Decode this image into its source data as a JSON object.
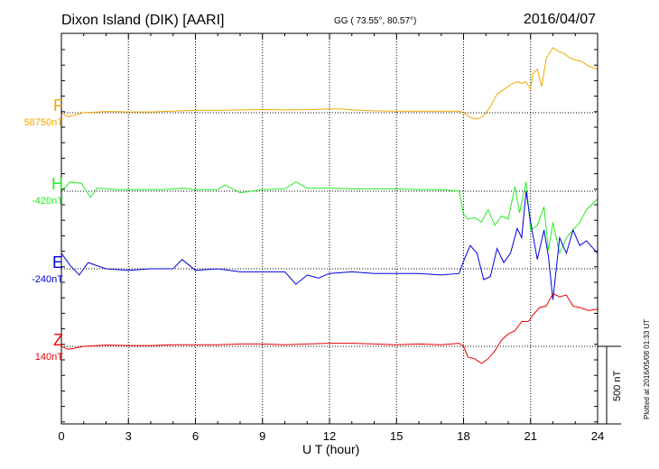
{
  "header": {
    "station": "Dixon Island (DIK)  [AARI]",
    "coords": "GG ( 73.55°,  80.57°)",
    "date": "2016/04/07"
  },
  "footer": {
    "plotted": "Plotted at 2016/05/08 01:33 UT",
    "scale_bar": "500 nT"
  },
  "colors": {
    "F": "#f0a800",
    "H": "#22ee22",
    "E": "#0000dd",
    "Z": "#ee0000"
  },
  "chart_data": {
    "type": "line",
    "title": "Dixon Island (DIK)  [AARI]",
    "xlabel": "U T (hour)",
    "ylabel": "",
    "xlim": [
      0,
      24
    ],
    "x_ticks": [
      "0",
      "3",
      "6",
      "9",
      "12",
      "15",
      "18",
      "21",
      "24"
    ],
    "scale_bar_nT": 500,
    "grid": true,
    "series": [
      {
        "name": "F",
        "baseline_label": "58750nT",
        "x": [
          0,
          0.3,
          1,
          2,
          3,
          4,
          5,
          6,
          7,
          8,
          9,
          10,
          11,
          12,
          12.5,
          13,
          14,
          15,
          16,
          17,
          17.8,
          18.0,
          18.3,
          18.6,
          18.9,
          19.2,
          19.5,
          19.8,
          20.1,
          20.4,
          20.6,
          20.8,
          21.0,
          21.1,
          21.3,
          21.5,
          21.7,
          22.0,
          22.2,
          22.5,
          22.8,
          23.0,
          23.3,
          23.6,
          24
        ],
        "y": [
          0,
          -25,
          0,
          8,
          5,
          5,
          10,
          15,
          15,
          18,
          20,
          18,
          20,
          25,
          25,
          18,
          12,
          10,
          10,
          10,
          10,
          0,
          -30,
          -40,
          -20,
          40,
          120,
          150,
          180,
          200,
          190,
          200,
          150,
          250,
          280,
          170,
          350,
          420,
          400,
          380,
          350,
          340,
          330,
          300,
          280
        ]
      },
      {
        "name": "H",
        "baseline_label": "-420nT",
        "x": [
          0,
          0.4,
          0.9,
          1.3,
          1.6,
          2.5,
          3.5,
          4.5,
          5.5,
          6,
          7,
          7.3,
          8,
          9,
          10,
          10.5,
          11,
          12,
          13,
          14,
          15,
          16,
          17,
          17.8,
          18.0,
          18.2,
          18.5,
          18.8,
          19.1,
          19.4,
          19.7,
          20.0,
          20.3,
          20.5,
          20.8,
          21.0,
          21.3,
          21.6,
          21.8,
          22.0,
          22.3,
          22.6,
          22.9,
          23.2,
          23.5,
          24
        ],
        "y": [
          0,
          60,
          50,
          -40,
          20,
          10,
          10,
          10,
          20,
          10,
          10,
          40,
          -10,
          10,
          15,
          60,
          20,
          20,
          15,
          15,
          15,
          10,
          10,
          0,
          -150,
          -180,
          -170,
          -200,
          -120,
          -220,
          -160,
          -180,
          30,
          -140,
          60,
          -250,
          -220,
          -100,
          -380,
          -200,
          -400,
          -300,
          -250,
          -200,
          -120,
          -50
        ]
      },
      {
        "name": "E",
        "baseline_label": "-240nT",
        "x": [
          0,
          0.4,
          0.8,
          1.2,
          1.6,
          2,
          3,
          4,
          5,
          5.4,
          6,
          7,
          8,
          9,
          10,
          10.5,
          11,
          11.5,
          12,
          13,
          14,
          15,
          16,
          17,
          17.8,
          18.0,
          18.3,
          18.6,
          18.9,
          19.2,
          19.5,
          19.8,
          20.1,
          20.4,
          20.6,
          20.8,
          21.0,
          21.3,
          21.6,
          21.8,
          22.0,
          22.3,
          22.6,
          22.9,
          23.2,
          23.5,
          24
        ],
        "y": [
          100,
          20,
          -40,
          40,
          20,
          0,
          -10,
          0,
          0,
          60,
          -10,
          0,
          -20,
          -20,
          -20,
          -100,
          -40,
          -60,
          -30,
          -20,
          -30,
          -30,
          -30,
          -40,
          -30,
          50,
          150,
          100,
          -70,
          -50,
          130,
          40,
          100,
          260,
          200,
          500,
          300,
          60,
          250,
          80,
          -200,
          200,
          100,
          250,
          150,
          180,
          100
        ]
      },
      {
        "name": "Z",
        "baseline_label": "140nT",
        "x": [
          0,
          0.3,
          1,
          2,
          3,
          4,
          5,
          6,
          7,
          8,
          9,
          10,
          11,
          12,
          13,
          14,
          15,
          16,
          17,
          17.8,
          18.0,
          18.2,
          18.5,
          18.8,
          19.1,
          19.4,
          19.7,
          20.0,
          20.3,
          20.6,
          20.9,
          21.1,
          21.4,
          21.7,
          22.0,
          22.3,
          22.6,
          22.9,
          23.2,
          23.6,
          24
        ],
        "y": [
          0,
          -20,
          0,
          8,
          5,
          5,
          10,
          10,
          10,
          15,
          15,
          10,
          15,
          20,
          20,
          15,
          10,
          15,
          10,
          20,
          0,
          -70,
          -80,
          -110,
          -80,
          -30,
          40,
          80,
          100,
          160,
          160,
          200,
          250,
          260,
          340,
          320,
          330,
          260,
          250,
          230,
          240
        ]
      }
    ]
  }
}
